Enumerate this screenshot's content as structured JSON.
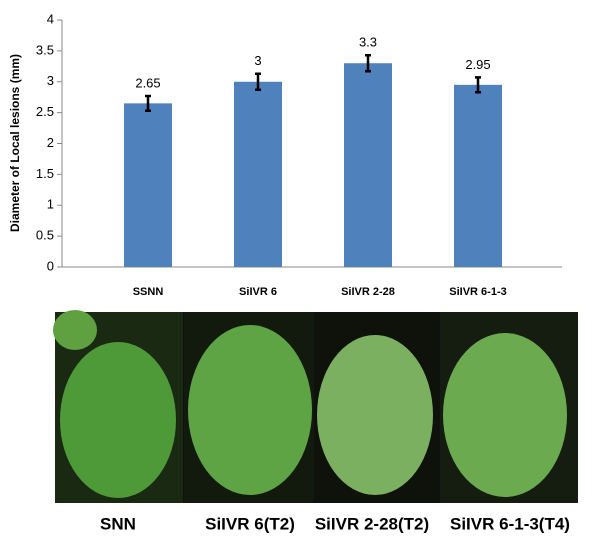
{
  "chart_data": {
    "type": "bar",
    "y_label": "Diameter of Local lesions (mm)",
    "categories": [
      "SSNN",
      "SiIVR 6",
      "SiIVR 2-28",
      "SiIVR 6-1-3"
    ],
    "values": [
      2.65,
      3,
      3.3,
      2.95
    ],
    "errors": [
      0.12,
      0.13,
      0.13,
      0.12
    ],
    "color": "#4f81bd",
    "ylim": [
      0,
      4
    ],
    "yticks": [
      0,
      0.5,
      1,
      1.5,
      2,
      2.5,
      3,
      3.5,
      4
    ],
    "grid": false
  },
  "photos": {
    "captions": [
      "SNN",
      "SiIVR 6(T2)",
      "SiIVR 2-28(T2)",
      "SiIVR 6-1-3(T4)"
    ]
  }
}
